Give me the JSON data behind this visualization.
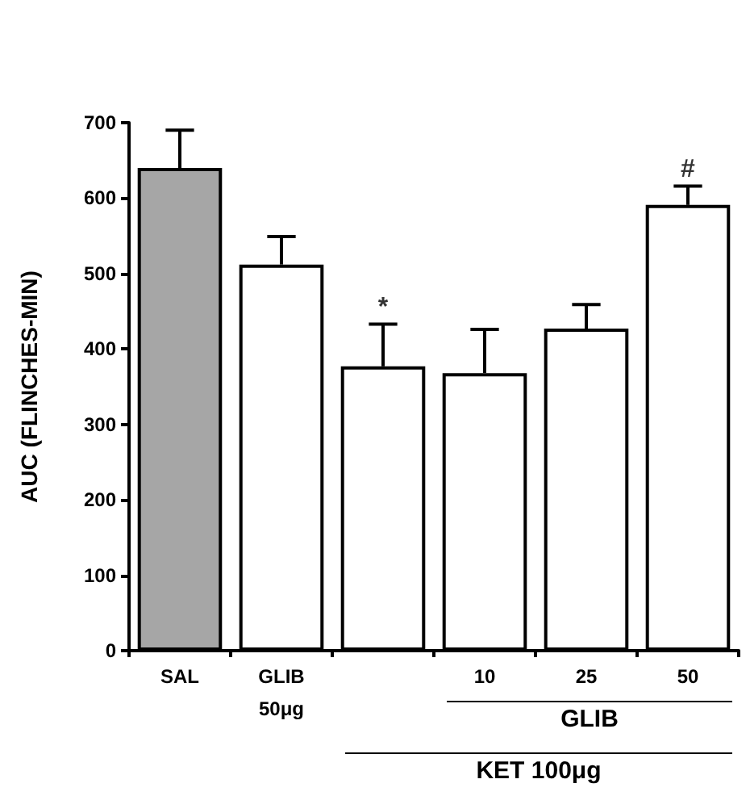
{
  "chart_data": {
    "type": "bar",
    "ylabel": "AUC (FLINCHES-MIN)",
    "categories": [
      "SAL",
      "GLIB\n50μg",
      null,
      "10",
      "25",
      "50"
    ],
    "values": [
      640,
      512,
      377,
      368,
      427,
      591
    ],
    "colors": [
      "#a6a6a6",
      "#ffffff",
      "#ffffff",
      "#ffffff",
      "#ffffff",
      "#ffffff"
    ],
    "errors": [
      [
        640,
        690
      ],
      [
        512,
        549
      ],
      [
        377,
        433
      ],
      [
        368,
        426
      ],
      [
        427,
        459
      ],
      [
        591,
        616
      ]
    ],
    "ylim": [
      0,
      700
    ],
    "yticks": [
      0,
      100,
      200,
      300,
      400,
      500,
      600,
      700
    ],
    "grid": false,
    "annotations": [
      {
        "text": "*",
        "y": 433
      },
      {
        "text": "#",
        "x": "50",
        "y": 616
      },
      "GLIB",
      "KET 100μg"
    ]
  }
}
